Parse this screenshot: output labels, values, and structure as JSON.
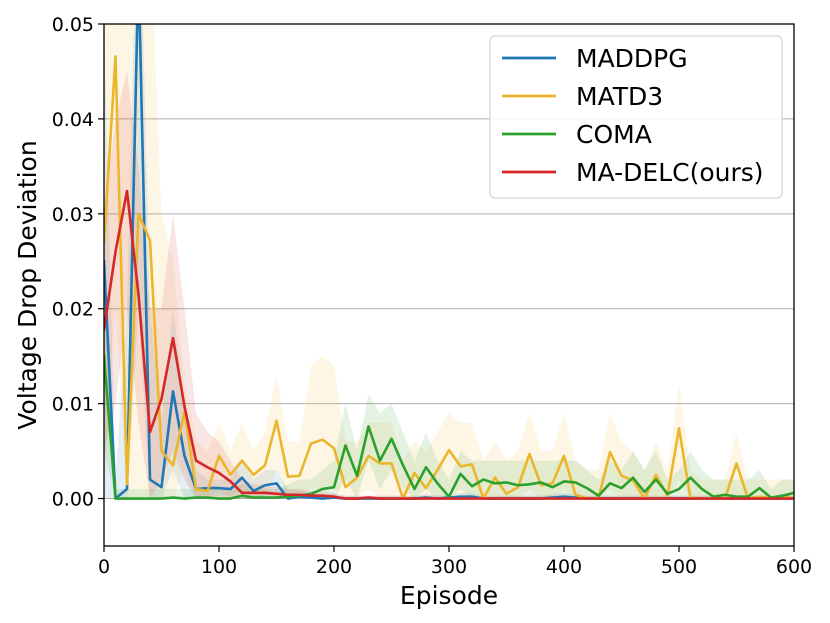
{
  "chart_data": {
    "type": "line",
    "title": "",
    "xlabel": "Episode",
    "ylabel": "Voltage Drop Deviation",
    "xlim": [
      0,
      600
    ],
    "ylim": [
      -0.005,
      0.05
    ],
    "xticks": [
      0,
      100,
      200,
      300,
      400,
      500,
      600
    ],
    "xtick_labels": [
      "0",
      "100",
      "200",
      "300",
      "400",
      "500",
      "600"
    ],
    "yticks": [
      0.0,
      0.01,
      0.02,
      0.03,
      0.04,
      0.05
    ],
    "ytick_labels": [
      "0.00",
      "0.01",
      "0.02",
      "0.03",
      "0.04",
      "0.05"
    ],
    "grid": "y-major",
    "legend_position": "top-right",
    "x": [
      0,
      10,
      20,
      30,
      40,
      50,
      60,
      70,
      80,
      90,
      100,
      110,
      120,
      130,
      140,
      150,
      160,
      170,
      180,
      190,
      200,
      210,
      220,
      230,
      240,
      250,
      260,
      270,
      280,
      290,
      300,
      310,
      320,
      330,
      340,
      350,
      360,
      370,
      380,
      390,
      400,
      410,
      420,
      430,
      440,
      450,
      460,
      470,
      480,
      490,
      500,
      510,
      520,
      530,
      540,
      550,
      560,
      570,
      580,
      590,
      600
    ],
    "series": [
      {
        "name": "MADDPG",
        "color": "#1f77b4",
        "values": [
          0.025,
          0.0,
          0.001,
          0.056,
          0.002,
          0.0012,
          0.0113,
          0.0045,
          0.001,
          0.0011,
          0.0011,
          0.001,
          0.0022,
          0.0008,
          0.0014,
          0.0016,
          0.0,
          0.0002,
          0.0001,
          0.0,
          0.0001,
          0.0,
          0.0,
          0.0,
          0.0,
          0.0,
          0.0,
          0.0,
          0.0001,
          0.0,
          0.0001,
          0.0002,
          0.0002,
          0.0,
          0.0,
          0.0,
          0.0,
          0.0,
          0.0,
          0.0001,
          0.0002,
          0.0001,
          0.0,
          0.0,
          0.0,
          0.0,
          0.0,
          0.0,
          0.0,
          0.0,
          0.0,
          0.0,
          0.0,
          0.0,
          0.0,
          0.0,
          0.0,
          0.0,
          0.0,
          0.0,
          0.0
        ],
        "upper": [
          0.05,
          0.002,
          0.02,
          0.07,
          0.02,
          0.008,
          0.02,
          0.01,
          0.003,
          0.002,
          0.002,
          0.002,
          0.004,
          0.002,
          0.003,
          0.003,
          0.001,
          0.0008,
          0.0006,
          0.0004,
          0.0005,
          0.0003,
          0.0003,
          0.0003,
          0.0003,
          0.0003,
          0.0003,
          0.0003,
          0.0005,
          0.0003,
          0.0005,
          0.0006,
          0.0006,
          0.0003,
          0.0003,
          0.0003,
          0.0003,
          0.0003,
          0.0003,
          0.0005,
          0.0006,
          0.0005,
          0.0003,
          0.0003,
          0.0003,
          0.0003,
          0.0003,
          0.0003,
          0.0003,
          0.0003,
          0.0003,
          0.0003,
          0.0003,
          0.0003,
          0.0003,
          0.0003,
          0.0003,
          0.0003,
          0.0003,
          0.0003,
          0.0003
        ],
        "lower": [
          0.0,
          0.0,
          0.0,
          0.02,
          0.0,
          0.0,
          0.003,
          0.0,
          0.0,
          0.0003,
          0.0003,
          0.0003,
          0.0008,
          0.0,
          0.0003,
          0.0005,
          0.0,
          0.0,
          0.0,
          0.0,
          0.0,
          0.0,
          0.0,
          0.0,
          0.0,
          0.0,
          0.0,
          0.0,
          0.0,
          0.0,
          0.0,
          0.0,
          0.0,
          0.0,
          0.0,
          0.0,
          0.0,
          0.0,
          0.0,
          0.0,
          0.0,
          0.0,
          0.0,
          0.0,
          0.0,
          0.0,
          0.0,
          0.0,
          0.0,
          0.0,
          0.0,
          0.0,
          0.0,
          0.0,
          0.0,
          0.0,
          0.0,
          0.0,
          0.0,
          0.0,
          0.0
        ]
      },
      {
        "name": "MATD3",
        "color": "#ebb52c",
        "values": [
          0.027,
          0.0466,
          0.0015,
          0.03,
          0.0272,
          0.005,
          0.0035,
          0.0092,
          0.001,
          0.0008,
          0.0045,
          0.0025,
          0.004,
          0.0025,
          0.0035,
          0.0082,
          0.0023,
          0.0024,
          0.0058,
          0.0062,
          0.0053,
          0.0012,
          0.0022,
          0.0045,
          0.0037,
          0.0037,
          0.0,
          0.0027,
          0.0011,
          0.003,
          0.0051,
          0.0034,
          0.0036,
          0.0,
          0.0022,
          0.0005,
          0.0012,
          0.0047,
          0.0014,
          0.0016,
          0.0045,
          0.0004,
          0.0,
          0.0,
          0.0049,
          0.0024,
          0.0019,
          0.0,
          0.0025,
          0.0003,
          0.0074,
          0.0,
          0.0,
          0.0,
          0.0,
          0.0037,
          0.0,
          0.0002,
          0.0,
          0.0003,
          0.0
        ],
        "upper": [
          0.05,
          0.06,
          0.06,
          0.065,
          0.06,
          0.03,
          0.025,
          0.012,
          0.006,
          0.005,
          0.008,
          0.005,
          0.008,
          0.005,
          0.007,
          0.013,
          0.006,
          0.006,
          0.014,
          0.015,
          0.014,
          0.006,
          0.006,
          0.008,
          0.008,
          0.008,
          0.004,
          0.006,
          0.005,
          0.007,
          0.009,
          0.008,
          0.008,
          0.004,
          0.006,
          0.004,
          0.005,
          0.009,
          0.005,
          0.005,
          0.009,
          0.004,
          0.003,
          0.003,
          0.009,
          0.006,
          0.005,
          0.003,
          0.006,
          0.003,
          0.012,
          0.003,
          0.002,
          0.002,
          0.002,
          0.007,
          0.002,
          0.002,
          0.002,
          0.002,
          0.002
        ],
        "lower": [
          0.0,
          0.02,
          0.0,
          0.0,
          0.0,
          0.0,
          0.0,
          0.003,
          0.0,
          0.0,
          0.001,
          0.0,
          0.0,
          0.0,
          0.0,
          0.003,
          0.0,
          0.0,
          0.001,
          0.001,
          0.001,
          0.0,
          0.0,
          0.001,
          0.0,
          0.0,
          0.0,
          0.0,
          0.0,
          0.0,
          0.001,
          0.0,
          0.0,
          0.0,
          0.0,
          0.0,
          0.0,
          0.001,
          0.0,
          0.0,
          0.001,
          0.0,
          0.0,
          0.0,
          0.001,
          0.0,
          0.0,
          0.0,
          0.0,
          0.0,
          0.002,
          0.0,
          0.0,
          0.0,
          0.0,
          0.0,
          0.0,
          0.0,
          0.0,
          0.0,
          0.0
        ]
      },
      {
        "name": "COMA",
        "color": "#2ca02c",
        "values": [
          0.015,
          0.0,
          0.0,
          0.0,
          0.0,
          0.0,
          0.0001,
          0.0,
          0.0001,
          0.0001,
          0.0,
          0.0,
          0.0003,
          0.0001,
          0.0001,
          0.0001,
          0.0002,
          0.0003,
          0.0005,
          0.001,
          0.0012,
          0.0056,
          0.0024,
          0.0076,
          0.004,
          0.0063,
          0.0035,
          0.001,
          0.0033,
          0.0016,
          0.0002,
          0.0026,
          0.0013,
          0.002,
          0.0016,
          0.0017,
          0.0014,
          0.0015,
          0.0017,
          0.0012,
          0.0018,
          0.0017,
          0.0011,
          0.0003,
          0.0016,
          0.0011,
          0.0022,
          0.0007,
          0.002,
          0.0005,
          0.001,
          0.0022,
          0.001,
          0.0002,
          0.0004,
          0.0002,
          0.0002,
          0.0011,
          0.0001,
          0.0003,
          0.0006
        ],
        "upper": [
          0.025,
          0.001,
          0.001,
          0.001,
          0.001,
          0.001,
          0.001,
          0.001,
          0.001,
          0.001,
          0.001,
          0.001,
          0.0015,
          0.001,
          0.001,
          0.001,
          0.0015,
          0.002,
          0.002,
          0.003,
          0.004,
          0.01,
          0.005,
          0.011,
          0.009,
          0.01,
          0.007,
          0.004,
          0.007,
          0.004,
          0.002,
          0.005,
          0.004,
          0.004,
          0.004,
          0.004,
          0.004,
          0.004,
          0.004,
          0.004,
          0.004,
          0.004,
          0.003,
          0.002,
          0.004,
          0.003,
          0.005,
          0.003,
          0.005,
          0.002,
          0.003,
          0.005,
          0.003,
          0.002,
          0.002,
          0.002,
          0.002,
          0.003,
          0.001,
          0.002,
          0.002
        ],
        "lower": [
          0.005,
          0.0,
          0.0,
          0.0,
          0.0,
          0.0,
          0.0,
          0.0,
          0.0,
          0.0,
          0.0,
          0.0,
          0.0,
          0.0,
          0.0,
          0.0,
          0.0,
          0.0,
          0.0,
          0.0,
          0.0,
          0.002,
          0.0,
          0.004,
          0.001,
          0.003,
          0.001,
          0.0,
          0.001,
          0.0,
          0.0,
          0.001,
          0.0,
          0.0005,
          0.0,
          0.0,
          0.0,
          0.0,
          0.0,
          0.0,
          0.0,
          0.0,
          0.0,
          0.0,
          0.0,
          0.0,
          0.0,
          0.0,
          0.0,
          0.0,
          0.0,
          0.0,
          0.0,
          0.0,
          0.0,
          0.0,
          0.0,
          0.0,
          0.0,
          0.0,
          0.0
        ]
      },
      {
        "name": "MA-DELC(ours)",
        "color": "#d62728",
        "values": [
          0.0178,
          0.026,
          0.0324,
          0.0215,
          0.007,
          0.0105,
          0.0169,
          0.0097,
          0.004,
          0.0033,
          0.0027,
          0.0018,
          0.0006,
          0.0006,
          0.0006,
          0.0005,
          0.0004,
          0.0004,
          0.0003,
          0.0003,
          0.0002,
          0.0,
          0.0,
          0.0001,
          0.0,
          0.0,
          0.0,
          0.0,
          0.0,
          0.0,
          0.0,
          0.0,
          0.0,
          0.0,
          0.0,
          0.0,
          0.0,
          0.0,
          0.0,
          0.0,
          0.0,
          0.0,
          0.0,
          0.0,
          0.0,
          0.0,
          0.0,
          0.0,
          0.0,
          0.0,
          0.0,
          0.0,
          0.0,
          0.0,
          0.0,
          0.0,
          0.0,
          0.0,
          0.0,
          0.0,
          0.0
        ],
        "upper": [
          0.03,
          0.04,
          0.045,
          0.035,
          0.02,
          0.02,
          0.03,
          0.02,
          0.009,
          0.007,
          0.006,
          0.004,
          0.002,
          0.0015,
          0.0015,
          0.0012,
          0.001,
          0.001,
          0.0008,
          0.0008,
          0.0006,
          0.0003,
          0.0003,
          0.0003,
          0.0003,
          0.0003,
          0.0003,
          0.0003,
          0.0003,
          0.0003,
          0.0003,
          0.0003,
          0.0003,
          0.0003,
          0.0003,
          0.0003,
          0.0003,
          0.0003,
          0.0003,
          0.0003,
          0.0003,
          0.0003,
          0.0003,
          0.0003,
          0.0003,
          0.0003,
          0.0003,
          0.0003,
          0.0003,
          0.0003,
          0.0003,
          0.0003,
          0.0003,
          0.0003,
          0.0003,
          0.0003,
          0.0003,
          0.0003,
          0.0003,
          0.0003,
          0.0003
        ],
        "lower": [
          0.005,
          0.01,
          0.02,
          0.008,
          0.0,
          0.002,
          0.005,
          0.002,
          0.0,
          0.0,
          0.0,
          0.0,
          0.0,
          0.0,
          0.0,
          0.0,
          0.0,
          0.0,
          0.0,
          0.0,
          0.0,
          0.0,
          0.0,
          0.0,
          0.0,
          0.0,
          0.0,
          0.0,
          0.0,
          0.0,
          0.0,
          0.0,
          0.0,
          0.0,
          0.0,
          0.0,
          0.0,
          0.0,
          0.0,
          0.0,
          0.0,
          0.0,
          0.0,
          0.0,
          0.0,
          0.0,
          0.0,
          0.0,
          0.0,
          0.0,
          0.0,
          0.0,
          0.0,
          0.0,
          0.0,
          0.0,
          0.0,
          0.0,
          0.0,
          0.0,
          0.0
        ]
      }
    ]
  }
}
